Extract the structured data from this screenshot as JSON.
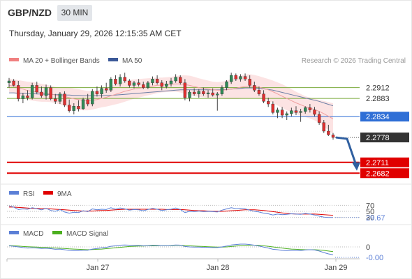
{
  "header": {
    "pair": "GBP/NZD",
    "timeframe": "30 MIN",
    "datetime": "Thursday, January 29, 2026 12:15:35 AM CET"
  },
  "legend": {
    "ma20_label": "MA 20 + Bollinger Bands",
    "ma50_label": "MA 50",
    "ma20_color": "#f08080",
    "ma50_color": "#3b5998",
    "credit": "Research © 2026 Trading Central"
  },
  "colors": {
    "support": "#e00000",
    "current_price": "#333333",
    "pivot": "#2f6fd6",
    "resistance": "#7aaa3a",
    "bull_candle": "#2e8b57",
    "bear_candle": "#e03030",
    "band_fill": "#fbdede",
    "rsi": "#5b7fd6",
    "rsi_ma": "#e00000",
    "macd": "#5b7fd6",
    "macd_signal": "#4caf1f",
    "arrow": "#2f5fa0"
  },
  "chart_data": [
    {
      "type": "candlestick",
      "name": "price",
      "ylim": [
        2.266,
        2.296
      ],
      "x_ticks": [
        "Jan 27",
        "Jan 28",
        "Jan 29"
      ],
      "levels": [
        {
          "label": "2.2912",
          "value": 2.2912,
          "kind": "resistance"
        },
        {
          "label": "2.2883",
          "value": 2.2883,
          "kind": "resistance"
        },
        {
          "label": "2.2834",
          "value": 2.2834,
          "kind": "pivot"
        },
        {
          "label": "2.2778",
          "value": 2.2778,
          "kind": "current"
        },
        {
          "label": "2.2711",
          "value": 2.2711,
          "kind": "support"
        },
        {
          "label": "2.2682",
          "value": 2.2682,
          "kind": "support"
        }
      ],
      "candles": [
        [
          2.2925,
          2.2938,
          2.2912,
          2.293
        ],
        [
          2.293,
          2.2935,
          2.2915,
          2.2918
        ],
        [
          2.2918,
          2.293,
          2.2875,
          2.2882
        ],
        [
          2.2882,
          2.2898,
          2.287,
          2.289
        ],
        [
          2.289,
          2.2905,
          2.2878,
          2.2885
        ],
        [
          2.2885,
          2.2925,
          2.288,
          2.2918
        ],
        [
          2.2918,
          2.2928,
          2.2895,
          2.29
        ],
        [
          2.29,
          2.2915,
          2.2885,
          2.289
        ],
        [
          2.289,
          2.292,
          2.288,
          2.2912
        ],
        [
          2.2912,
          2.2918,
          2.2878,
          2.2882
        ],
        [
          2.2882,
          2.2895,
          2.2868,
          2.2875
        ],
        [
          2.2875,
          2.29,
          2.2868,
          2.2895
        ],
        [
          2.2895,
          2.2902,
          2.286,
          2.2865
        ],
        [
          2.2865,
          2.288,
          2.2845,
          2.285
        ],
        [
          2.285,
          2.287,
          2.284,
          2.2862
        ],
        [
          2.2862,
          2.2878,
          2.2848,
          2.2855
        ],
        [
          2.2855,
          2.2885,
          2.2852,
          2.288
        ],
        [
          2.288,
          2.2895,
          2.2862,
          2.2868
        ],
        [
          2.2868,
          2.2908,
          2.2862,
          2.2902
        ],
        [
          2.2902,
          2.2915,
          2.2888,
          2.2895
        ],
        [
          2.2895,
          2.2918,
          2.2885,
          2.291
        ],
        [
          2.291,
          2.2925,
          2.2898,
          2.2905
        ],
        [
          2.2905,
          2.294,
          2.29,
          2.2935
        ],
        [
          2.2935,
          2.2945,
          2.2918,
          2.2922
        ],
        [
          2.2922,
          2.2948,
          2.2915,
          2.294
        ],
        [
          2.294,
          2.2952,
          2.2925,
          2.293
        ],
        [
          2.293,
          2.2935,
          2.2912,
          2.2918
        ],
        [
          2.2918,
          2.293,
          2.291,
          2.2925
        ],
        [
          2.2925,
          2.2935,
          2.2915,
          2.292
        ],
        [
          2.292,
          2.2928,
          2.2908,
          2.2912
        ],
        [
          2.2912,
          2.293,
          2.2908,
          2.2925
        ],
        [
          2.2925,
          2.2942,
          2.2918,
          2.2935
        ],
        [
          2.2935,
          2.2945,
          2.292,
          2.2925
        ],
        [
          2.2925,
          2.2932,
          2.2905,
          2.2915
        ],
        [
          2.2915,
          2.293,
          2.291,
          2.2922
        ],
        [
          2.2922,
          2.2938,
          2.2915,
          2.293
        ],
        [
          2.293,
          2.2948,
          2.2925,
          2.294
        ],
        [
          2.294,
          2.2945,
          2.292,
          2.2925
        ],
        [
          2.2925,
          2.2935,
          2.2878,
          2.2885
        ],
        [
          2.2885,
          2.2905,
          2.2875,
          2.29
        ],
        [
          2.29,
          2.291,
          2.289,
          2.2895
        ],
        [
          2.2895,
          2.2908,
          2.2885,
          2.2902
        ],
        [
          2.2902,
          2.2912,
          2.289,
          2.2895
        ],
        [
          2.2895,
          2.2905,
          2.2885,
          2.2898
        ],
        [
          2.2898,
          2.291,
          2.2888,
          2.2892
        ],
        [
          2.2892,
          2.29,
          2.285,
          2.2895
        ],
        [
          2.2895,
          2.2918,
          2.289,
          2.2912
        ],
        [
          2.2912,
          2.2932,
          2.2905,
          2.2928
        ],
        [
          2.2928,
          2.2952,
          2.2922,
          2.2945
        ],
        [
          2.2945,
          2.295,
          2.293,
          2.2935
        ],
        [
          2.2935,
          2.2948,
          2.2928,
          2.2942
        ],
        [
          2.2942,
          2.295,
          2.293,
          2.2935
        ],
        [
          2.2935,
          2.2945,
          2.2912,
          2.2918
        ],
        [
          2.2918,
          2.2928,
          2.29,
          2.2905
        ],
        [
          2.2905,
          2.2915,
          2.289,
          2.2895
        ],
        [
          2.2895,
          2.2905,
          2.287,
          2.2875
        ],
        [
          2.2875,
          2.2885,
          2.286,
          2.2868
        ],
        [
          2.2868,
          2.2875,
          2.284,
          2.2845
        ],
        [
          2.2845,
          2.2858,
          2.283,
          2.2852
        ],
        [
          2.2852,
          2.286,
          2.283,
          2.2838
        ],
        [
          2.2838,
          2.2848,
          2.2825,
          2.2842
        ],
        [
          2.2842,
          2.2858,
          2.2835,
          2.285
        ],
        [
          2.285,
          2.2862,
          2.2838,
          2.2845
        ],
        [
          2.2845,
          2.2855,
          2.282,
          2.2848
        ],
        [
          2.2848,
          2.2862,
          2.2842,
          2.2858
        ],
        [
          2.2858,
          2.2868,
          2.2845,
          2.2852
        ],
        [
          2.2852,
          2.286,
          2.2835,
          2.284
        ],
        [
          2.284,
          2.2848,
          2.2812,
          2.2818
        ],
        [
          2.2818,
          2.2825,
          2.279,
          2.2795
        ],
        [
          2.2795,
          2.2812,
          2.2782,
          2.2785
        ],
        [
          2.2785,
          2.279,
          2.2772,
          2.2778
        ]
      ],
      "ma20": [
        2.2918,
        2.2916,
        2.2912,
        2.2908,
        2.2904,
        2.2902,
        2.29,
        2.2898,
        2.2897,
        2.2895,
        2.2892,
        2.289,
        2.2888,
        2.2885,
        2.2882,
        2.288,
        2.2878,
        2.2877,
        2.2878,
        2.288,
        2.2883,
        2.2886,
        2.289,
        2.2894,
        2.2898,
        2.2902,
        2.2905,
        2.2908,
        2.291,
        2.2912,
        2.2914,
        2.2916,
        2.2918,
        2.2919,
        2.292,
        2.2921,
        2.2922,
        2.2922,
        2.292,
        2.2918,
        2.2915,
        2.2912,
        2.291,
        2.2908,
        2.2906,
        2.2905,
        2.2905,
        2.2906,
        2.2908,
        2.291,
        2.2913,
        2.2915,
        2.2916,
        2.2915,
        2.2913,
        2.291,
        2.2906,
        2.2901,
        2.2895,
        2.2889,
        2.2883,
        2.2877,
        2.2871,
        2.2866,
        2.2861,
        2.2857,
        2.2853,
        2.2848,
        2.2842,
        2.2835,
        2.2828
      ],
      "ma20_band_width": [
        0.0018,
        0.0018,
        0.002,
        0.0022,
        0.0024,
        0.0025,
        0.0025,
        0.0024,
        0.0023,
        0.0022,
        0.0022,
        0.0023,
        0.0025,
        0.0027,
        0.0028,
        0.0028,
        0.0027,
        0.0026,
        0.0025,
        0.0024,
        0.0024,
        0.0025,
        0.0026,
        0.0027,
        0.0028,
        0.0028,
        0.0027,
        0.0026,
        0.0025,
        0.0024,
        0.0023,
        0.0022,
        0.0021,
        0.002,
        0.002,
        0.002,
        0.0021,
        0.0023,
        0.0025,
        0.0026,
        0.0026,
        0.0025,
        0.0024,
        0.0023,
        0.0022,
        0.0022,
        0.0023,
        0.0025,
        0.0027,
        0.0029,
        0.0031,
        0.0032,
        0.0032,
        0.0031,
        0.003,
        0.0029,
        0.0029,
        0.003,
        0.0031,
        0.0032,
        0.0032,
        0.0031,
        0.003,
        0.0029,
        0.0028,
        0.0028,
        0.0029,
        0.0031,
        0.0034,
        0.0038,
        0.0042
      ],
      "ma50": [
        2.2898,
        2.2898,
        2.2897,
        2.2897,
        2.2896,
        2.2896,
        2.2895,
        2.2895,
        2.2894,
        2.2894,
        2.2893,
        2.2893,
        2.2892,
        2.2892,
        2.2891,
        2.2891,
        2.289,
        2.289,
        2.289,
        2.289,
        2.289,
        2.2891,
        2.2891,
        2.2892,
        2.2893,
        2.2894,
        2.2895,
        2.2896,
        2.2897,
        2.2898,
        2.2899,
        2.29,
        2.2901,
        2.2902,
        2.2903,
        2.2904,
        2.2905,
        2.2906,
        2.2906,
        2.2906,
        2.2906,
        2.2906,
        2.2906,
        2.2906,
        2.2906,
        2.2906,
        2.2906,
        2.2907,
        2.2908,
        2.2909,
        2.291,
        2.2911,
        2.2911,
        2.2911,
        2.291,
        2.2909,
        2.2907,
        2.2905,
        2.2902,
        2.2899,
        2.2896,
        2.2893,
        2.289,
        2.2887,
        2.2884,
        2.2881,
        2.2878,
        2.2875,
        2.2871,
        2.2867,
        2.2863
      ]
    },
    {
      "type": "line",
      "name": "rsi",
      "legend": [
        "RSI",
        "9MA"
      ],
      "ylim": [
        20,
        80
      ],
      "levels": [
        {
          "label": "70",
          "value": 70
        },
        {
          "label": "50",
          "value": 50
        },
        {
          "label": "30",
          "value": 30
        }
      ],
      "value_label": "29.67",
      "rsi": [
        68,
        64,
        56,
        58,
        57,
        62,
        59,
        55,
        60,
        53,
        50,
        56,
        48,
        44,
        47,
        46,
        52,
        49,
        58,
        55,
        57,
        56,
        62,
        57,
        61,
        58,
        54,
        56,
        55,
        52,
        56,
        60,
        57,
        53,
        55,
        57,
        61,
        56,
        46,
        50,
        49,
        51,
        49,
        50,
        49,
        48,
        54,
        58,
        62,
        59,
        60,
        58,
        54,
        50,
        48,
        44,
        42,
        38,
        41,
        39,
        40,
        42,
        41,
        40,
        43,
        41,
        38,
        34,
        31,
        30,
        29.67
      ],
      "ma9": [
        64,
        64,
        63,
        62,
        61,
        60,
        60,
        59,
        59,
        58,
        57,
        56,
        55,
        54,
        53,
        52,
        51,
        51,
        51,
        52,
        53,
        53,
        54,
        55,
        56,
        57,
        57,
        57,
        57,
        57,
        57,
        57,
        57,
        57,
        56,
        56,
        56,
        56,
        55,
        54,
        53,
        52,
        52,
        51,
        50,
        50,
        50,
        51,
        52,
        53,
        54,
        55,
        55,
        55,
        54,
        53,
        51,
        49,
        47,
        45,
        43,
        42,
        41,
        41,
        41,
        41,
        41,
        40,
        39,
        38,
        37
      ]
    },
    {
      "type": "line",
      "name": "macd",
      "legend": [
        "MACD",
        "MACD Signal"
      ],
      "ylim": [
        -0.0045,
        0.0045
      ],
      "zero_label": "0",
      "value_label": "-0.00",
      "macd": [
        0.0005,
        0.0003,
        0.0,
        -0.0003,
        -0.0005,
        -0.0004,
        -0.0005,
        -0.0007,
        -0.0006,
        -0.0008,
        -0.0011,
        -0.001,
        -0.0013,
        -0.0016,
        -0.0017,
        -0.0017,
        -0.0015,
        -0.0015,
        -0.001,
        -0.0007,
        -0.0004,
        -0.0002,
        0.0003,
        0.0005,
        0.0008,
        0.0009,
        0.0008,
        0.0008,
        0.0007,
        0.0005,
        0.0006,
        0.0008,
        0.0008,
        0.0006,
        0.0006,
        0.0007,
        0.0009,
        0.0008,
        0.0002,
        0.0,
        -0.0001,
        -0.0001,
        -0.0002,
        -0.0002,
        -0.0003,
        -0.0003,
        0.0,
        0.0004,
        0.0009,
        0.0011,
        0.0013,
        0.0013,
        0.0011,
        0.0008,
        0.0004,
        -0.0001,
        -0.0005,
        -0.0011,
        -0.0013,
        -0.0016,
        -0.0017,
        -0.0016,
        -0.0016,
        -0.0017,
        -0.0014,
        -0.0013,
        -0.0014,
        -0.0019,
        -0.0026,
        -0.0032,
        -0.0036
      ],
      "signal": [
        0.0006,
        0.0005,
        0.0004,
        0.0002,
        0.0001,
        0.0,
        -0.0001,
        -0.0002,
        -0.0003,
        -0.0004,
        -0.0005,
        -0.0006,
        -0.0007,
        -0.0009,
        -0.001,
        -0.0011,
        -0.0012,
        -0.0013,
        -0.0012,
        -0.0011,
        -0.001,
        -0.0008,
        -0.0006,
        -0.0004,
        -0.0002,
        0.0,
        0.0002,
        0.0003,
        0.0004,
        0.0004,
        0.0005,
        0.0005,
        0.0006,
        0.0006,
        0.0006,
        0.0006,
        0.0007,
        0.0007,
        0.0006,
        0.0005,
        0.0004,
        0.0003,
        0.0002,
        0.0001,
        0.0,
        -0.0001,
        -0.0001,
        0.0,
        0.0002,
        0.0004,
        0.0006,
        0.0007,
        0.0008,
        0.0008,
        0.0007,
        0.0005,
        0.0003,
        0.0,
        -0.0003,
        -0.0005,
        -0.0008,
        -0.001,
        -0.0011,
        -0.0012,
        -0.0013,
        -0.0013,
        -0.0013,
        -0.0014,
        -0.0016,
        -0.0019,
        -0.0022
      ]
    }
  ]
}
